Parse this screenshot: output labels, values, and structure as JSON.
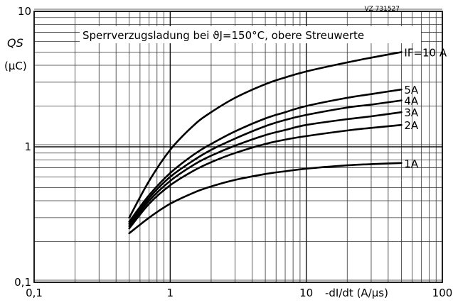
{
  "chart_data": {
    "type": "line",
    "title": "Sperrverzugsladung bei ϑJ=150°C, obere Streuwerte",
    "ref_code": "VZ 731527",
    "xlabel": "-dI/dt (A/µs)",
    "ylabel_line1": "QS",
    "ylabel_line2": "(µC)",
    "x_scale": "log",
    "y_scale": "log",
    "xlim": [
      0.1,
      100
    ],
    "ylim": [
      0.1,
      10
    ],
    "x_ticks": [
      0.1,
      1,
      10,
      100
    ],
    "x_tick_labels": [
      "0,1",
      "1",
      "10",
      "100"
    ],
    "y_ticks": [
      0.1,
      1,
      10
    ],
    "y_tick_labels": [
      "0,1",
      "1",
      "10"
    ],
    "grid": true,
    "series": [
      {
        "name": "IF=10 A",
        "x": [
          0.5,
          0.7,
          1,
          1.5,
          2,
          3,
          5,
          7,
          10,
          20,
          30,
          50
        ],
        "y": [
          0.3,
          0.56,
          0.95,
          1.45,
          1.8,
          2.3,
          2.9,
          3.25,
          3.6,
          4.2,
          4.55,
          5.0
        ]
      },
      {
        "name": "5A",
        "x": [
          0.5,
          0.7,
          1,
          1.5,
          2,
          3,
          5,
          7,
          10,
          20,
          30,
          50
        ],
        "y": [
          0.28,
          0.44,
          0.64,
          0.88,
          1.05,
          1.3,
          1.62,
          1.8,
          2.0,
          2.3,
          2.45,
          2.65
        ]
      },
      {
        "name": "4A",
        "x": [
          0.5,
          0.7,
          1,
          1.5,
          2,
          3,
          5,
          7,
          10,
          20,
          30,
          50
        ],
        "y": [
          0.27,
          0.42,
          0.6,
          0.8,
          0.95,
          1.15,
          1.42,
          1.58,
          1.72,
          1.95,
          2.05,
          2.2
        ]
      },
      {
        "name": "3A",
        "x": [
          0.5,
          0.7,
          1,
          1.5,
          2,
          3,
          5,
          7,
          10,
          20,
          30,
          50
        ],
        "y": [
          0.26,
          0.4,
          0.56,
          0.74,
          0.86,
          1.02,
          1.22,
          1.33,
          1.45,
          1.6,
          1.68,
          1.8
        ]
      },
      {
        "name": "2A",
        "x": [
          0.5,
          0.7,
          1,
          1.5,
          2,
          3,
          5,
          7,
          10,
          20,
          30,
          50
        ],
        "y": [
          0.25,
          0.38,
          0.52,
          0.67,
          0.77,
          0.9,
          1.05,
          1.13,
          1.2,
          1.32,
          1.38,
          1.45
        ]
      },
      {
        "name": "1A",
        "x": [
          0.5,
          0.7,
          1,
          1.5,
          2,
          3,
          5,
          7,
          10,
          20,
          30,
          50
        ],
        "y": [
          0.23,
          0.3,
          0.38,
          0.46,
          0.51,
          0.57,
          0.63,
          0.66,
          0.69,
          0.73,
          0.745,
          0.76
        ]
      }
    ]
  }
}
